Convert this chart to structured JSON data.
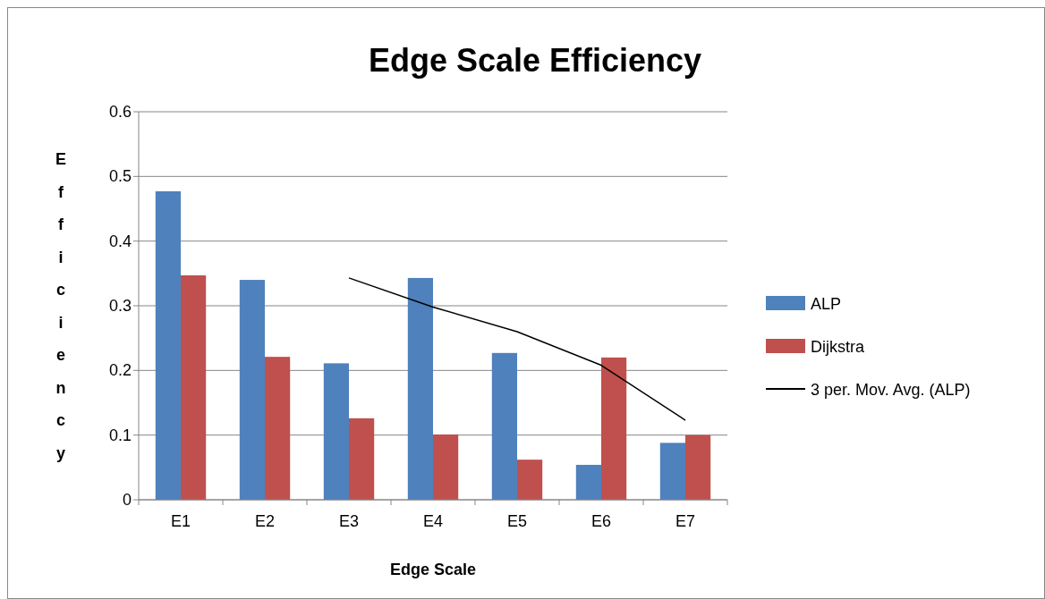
{
  "chart_data": {
    "type": "bar",
    "title": "Edge Scale Efficiency",
    "xlabel": "Edge Scale",
    "ylabel": "Efficiency",
    "categories": [
      "E1",
      "E2",
      "E3",
      "E4",
      "E5",
      "E6",
      "E7"
    ],
    "series": [
      {
        "name": "ALP",
        "color": "#4f81bd",
        "values": [
          0.477,
          0.34,
          0.211,
          0.343,
          0.227,
          0.054,
          0.088
        ]
      },
      {
        "name": "Dijkstra",
        "color": "#c0504d",
        "values": [
          0.347,
          0.221,
          0.126,
          0.101,
          0.062,
          0.22,
          0.1
        ]
      },
      {
        "name": "3 per. Mov. Avg. (ALP)",
        "type": "line",
        "color": "#000000",
        "values": [
          null,
          null,
          0.343,
          0.298,
          0.26,
          0.208,
          0.123
        ]
      }
    ],
    "ylim": [
      0,
      0.6
    ],
    "yticks": [
      0,
      0.1,
      0.2,
      0.3,
      0.4,
      0.5,
      0.6
    ],
    "grid": "y",
    "legend": "right"
  }
}
